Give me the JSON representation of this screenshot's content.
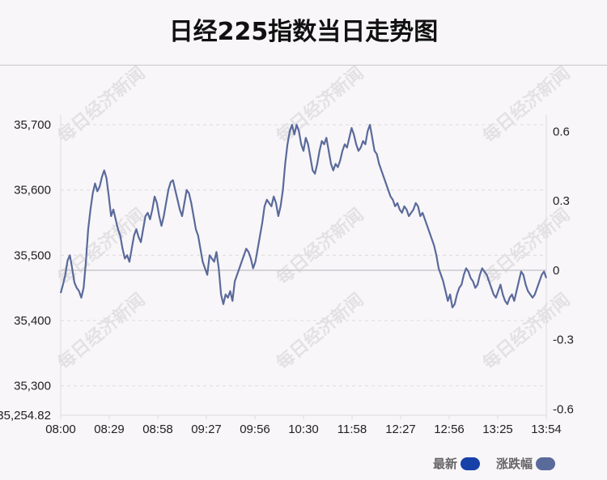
{
  "colors": {
    "background": "#f8f6f9",
    "line": "#5a6a9a",
    "grid": "#dcdcdc",
    "baseline": "#c8c8cc",
    "legend_latest": "#1740a8",
    "legend_change": "#5a6a9a"
  },
  "watermark": "每日经济新闻",
  "legend": {
    "items": [
      {
        "label": "最新",
        "color": "#1740a8"
      },
      {
        "label": "涨跌幅",
        "color": "#5a6a9a"
      }
    ]
  },
  "chart_data": {
    "type": "line",
    "title": "日经225指数当日走势图",
    "x_ticks": [
      "08:00",
      "08:29",
      "08:58",
      "09:27",
      "09:56",
      "10:30",
      "11:58",
      "12:27",
      "12:56",
      "13:25",
      "13:54"
    ],
    "y_left_ticks": [
      "35,700",
      "35,600",
      "35,500",
      "35,400",
      "35,300",
      "35,254.82"
    ],
    "y_left_tick_values": [
      35700,
      35600,
      35500,
      35400,
      35300,
      35254.82
    ],
    "y_right_ticks": [
      "0.6",
      "0.3",
      "0",
      "-0.3",
      "-0.6"
    ],
    "y_right_tick_values": [
      0.6,
      0.3,
      0,
      -0.3,
      -0.6
    ],
    "ylim_left": [
      35254.82,
      35715
    ],
    "reference_value": 35477,
    "grid": true,
    "legend_position": "bottom-right",
    "series": [
      {
        "values": [
          35442,
          35455,
          35470,
          35492,
          35500,
          35480,
          35458,
          35450,
          35445,
          35435,
          35450,
          35490,
          35540,
          35570,
          35595,
          35610,
          35598,
          35605,
          35620,
          35630,
          35618,
          35590,
          35560,
          35570,
          35555,
          35540,
          35530,
          35510,
          35495,
          35500,
          35490,
          35510,
          35530,
          35540,
          35528,
          35520,
          35540,
          35560,
          35565,
          35555,
          35570,
          35590,
          35580,
          35560,
          35545,
          35560,
          35580,
          35600,
          35612,
          35615,
          35600,
          35585,
          35570,
          35560,
          35580,
          35600,
          35595,
          35580,
          35560,
          35540,
          35530,
          35510,
          35490,
          35480,
          35470,
          35500,
          35495,
          35490,
          35505,
          35480,
          35440,
          35425,
          35440,
          35435,
          35445,
          35430,
          35460,
          35470,
          35480,
          35490,
          35500,
          35510,
          35505,
          35495,
          35480,
          35490,
          35510,
          35530,
          35550,
          35575,
          35585,
          35580,
          35575,
          35590,
          35580,
          35560,
          35575,
          35600,
          35640,
          35670,
          35690,
          35700,
          35685,
          35700,
          35690,
          35670,
          35660,
          35680,
          35670,
          35650,
          35630,
          35625,
          35640,
          35660,
          35675,
          35670,
          35680,
          35660,
          35640,
          35630,
          35640,
          35635,
          35645,
          35660,
          35670,
          35665,
          35680,
          35695,
          35685,
          35670,
          35660,
          35665,
          35675,
          35670,
          35690,
          35700,
          35680,
          35660,
          35655,
          35640,
          35630,
          35620,
          35610,
          35600,
          35590,
          35585,
          35575,
          35580,
          35570,
          35565,
          35575,
          35570,
          35560,
          35565,
          35570,
          35580,
          35575,
          35560,
          35565,
          35555,
          35545,
          35535,
          35525,
          35515,
          35500,
          35480,
          35470,
          35460,
          35445,
          35430,
          35440,
          35420,
          35425,
          35440,
          35450,
          35455,
          35470,
          35480,
          35475,
          35465,
          35460,
          35450,
          35455,
          35470,
          35480,
          35475,
          35470,
          35460,
          35450,
          35440,
          35435,
          35445,
          35455,
          35440,
          35430,
          35425,
          35435,
          35440,
          35430,
          35445,
          35460,
          35475,
          35470,
          35455,
          35445,
          35440,
          35435,
          35440,
          35450,
          35460,
          35470,
          35475,
          35465
        ]
      }
    ]
  }
}
